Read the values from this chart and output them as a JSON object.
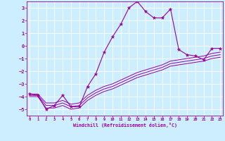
{
  "xlabel": "Windchill (Refroidissement éolien,°C)",
  "ylabel": "",
  "bg_color": "#cceeff",
  "line_color": "#990099",
  "grid_color": "#aadddd",
  "x_ticks": [
    0,
    1,
    2,
    3,
    4,
    5,
    6,
    7,
    8,
    9,
    10,
    11,
    12,
    13,
    14,
    15,
    16,
    17,
    18,
    19,
    20,
    21,
    22,
    23
  ],
  "y_ticks": [
    -5,
    -4,
    -3,
    -2,
    -1,
    0,
    1,
    2,
    3
  ],
  "xlim": [
    -0.3,
    23.3
  ],
  "ylim": [
    -5.5,
    3.5
  ],
  "series1": {
    "x": [
      0,
      1,
      2,
      3,
      4,
      5,
      6,
      7,
      8,
      9,
      10,
      11,
      12,
      13,
      14,
      15,
      16,
      17,
      18,
      19,
      20,
      21,
      22,
      23
    ],
    "y": [
      -3.8,
      -3.9,
      -5.0,
      -4.7,
      -3.9,
      -4.8,
      -4.8,
      -3.2,
      -2.2,
      -0.5,
      0.7,
      1.7,
      3.0,
      3.5,
      2.7,
      2.2,
      2.2,
      2.9,
      -0.3,
      -0.7,
      -0.8,
      -1.1,
      -0.2,
      -0.2
    ]
  },
  "series2": {
    "x": [
      0,
      1,
      2,
      3,
      4,
      5,
      6,
      7,
      8,
      9,
      10,
      11,
      12,
      13,
      14,
      15,
      16,
      17,
      18,
      19,
      20,
      21,
      22,
      23
    ],
    "y": [
      -3.8,
      -3.8,
      -4.5,
      -4.5,
      -4.3,
      -4.6,
      -4.5,
      -3.9,
      -3.5,
      -3.2,
      -3.0,
      -2.7,
      -2.4,
      -2.1,
      -1.9,
      -1.7,
      -1.5,
      -1.2,
      -1.1,
      -1.0,
      -0.9,
      -0.8,
      -0.6,
      -0.5
    ]
  },
  "series3": {
    "x": [
      0,
      1,
      2,
      3,
      4,
      5,
      6,
      7,
      8,
      9,
      10,
      11,
      12,
      13,
      14,
      15,
      16,
      17,
      18,
      19,
      20,
      21,
      22,
      23
    ],
    "y": [
      -3.9,
      -3.9,
      -4.7,
      -4.7,
      -4.5,
      -4.8,
      -4.7,
      -4.1,
      -3.7,
      -3.4,
      -3.2,
      -2.9,
      -2.6,
      -2.3,
      -2.1,
      -1.9,
      -1.7,
      -1.4,
      -1.3,
      -1.2,
      -1.1,
      -1.0,
      -0.8,
      -0.7
    ]
  },
  "series4": {
    "x": [
      0,
      1,
      2,
      3,
      4,
      5,
      6,
      7,
      8,
      9,
      10,
      11,
      12,
      13,
      14,
      15,
      16,
      17,
      18,
      19,
      20,
      21,
      22,
      23
    ],
    "y": [
      -4.0,
      -4.0,
      -4.9,
      -4.9,
      -4.7,
      -5.0,
      -4.9,
      -4.3,
      -3.9,
      -3.6,
      -3.4,
      -3.1,
      -2.8,
      -2.5,
      -2.3,
      -2.1,
      -1.9,
      -1.6,
      -1.5,
      -1.4,
      -1.3,
      -1.2,
      -1.0,
      -0.9
    ]
  }
}
